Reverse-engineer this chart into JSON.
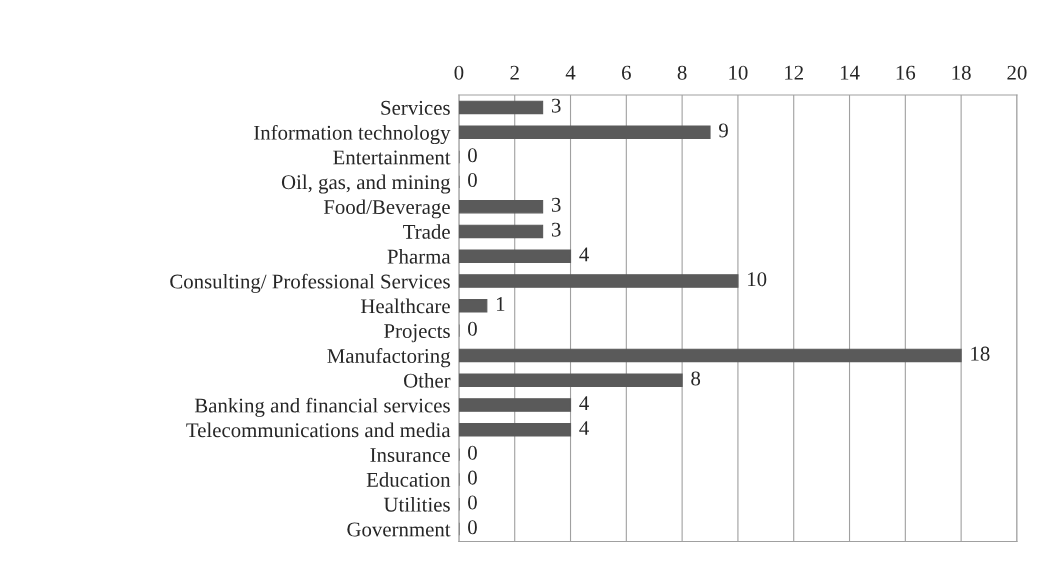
{
  "chart_data": {
    "type": "bar",
    "orientation": "horizontal",
    "categories": [
      "Services",
      "Information technology",
      "Entertainment",
      "Oil, gas, and mining",
      "Food/Beverage",
      "Trade",
      "Pharma",
      "Consulting/ Professional Services",
      "Healthcare",
      "Projects",
      "Manufactoring",
      "Other",
      "Banking and financial services",
      "Telecommunications and media",
      "Insurance",
      "Education",
      "Utilities",
      "Government"
    ],
    "values": [
      3,
      9,
      0,
      0,
      3,
      3,
      4,
      10,
      1,
      0,
      18,
      8,
      4,
      4,
      0,
      0,
      0,
      0
    ],
    "color": "#5a5a5a",
    "xlim": [
      0,
      20
    ],
    "xticks": [
      0,
      2,
      4,
      6,
      8,
      10,
      12,
      14,
      16,
      18,
      20
    ],
    "grid": "x",
    "data_labels": true,
    "legend": false
  }
}
